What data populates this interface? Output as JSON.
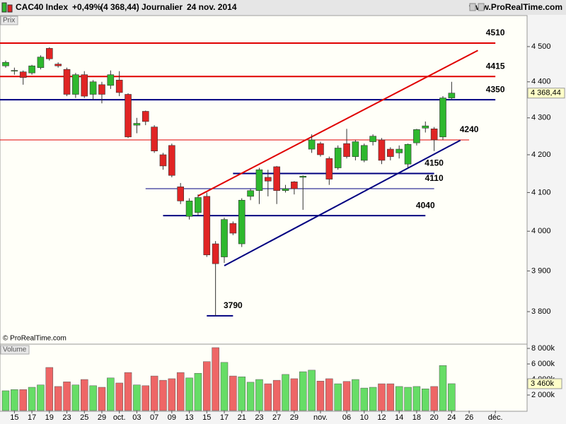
{
  "header": {
    "title": "CAC40 Index",
    "change": "+0,49%",
    "last": "(4 368,44)",
    "period": "Journalier",
    "date": "24 nov. 2014",
    "site": "www.ProRealTime.com"
  },
  "chart_data": [
    {
      "type": "candlestick",
      "panel_label": "Prix",
      "copyright": "© ProRealTime.com",
      "log_scale": true,
      "grid": false,
      "up_color": "#2eb82e",
      "down_color": "#e02424",
      "categories": [
        null,
        "15",
        null,
        "17",
        null,
        "19",
        null,
        "23",
        null,
        "25",
        null,
        "29",
        null,
        "oct.",
        null,
        "03",
        null,
        "07",
        null,
        "09",
        null,
        "13",
        null,
        "15",
        null,
        "17",
        null,
        "21",
        null,
        "23",
        null,
        "27",
        null,
        "29",
        null,
        null,
        "nov.",
        null,
        null,
        "06",
        null,
        "10",
        null,
        "12",
        null,
        "14",
        null,
        "18",
        null,
        "20",
        null,
        "24",
        null,
        "26",
        null,
        null,
        "déc."
      ],
      "open": [
        4445,
        4430,
        4428,
        4425,
        4440,
        4495,
        4450,
        4435,
        4365,
        4420,
        4365,
        4392,
        4390,
        4405,
        4365,
        4280,
        4318,
        4275,
        4200,
        4225,
        4115,
        4038,
        4048,
        4090,
        3968,
        3935,
        4020,
        3968,
        4090,
        4105,
        4140,
        4168,
        4105,
        4128,
        4140,
        4215,
        4230,
        4190,
        4165,
        4230,
        4195,
        4185,
        4235,
        4240,
        4215,
        4205,
        4175,
        4232,
        4272,
        4270,
        4248,
        4355,
        null,
        null,
        null,
        null,
        null
      ],
      "high": [
        4460,
        4440,
        4432,
        4448,
        4475,
        4498,
        4455,
        4440,
        4425,
        4430,
        4405,
        4400,
        4432,
        4430,
        4368,
        4300,
        4320,
        4280,
        4205,
        4230,
        4125,
        4085,
        4095,
        4100,
        3975,
        4035,
        4025,
        4085,
        4110,
        4165,
        4160,
        4170,
        4120,
        4130,
        4145,
        4255,
        4235,
        4195,
        4225,
        4270,
        4240,
        4230,
        4255,
        4245,
        4220,
        4225,
        4230,
        4270,
        4290,
        4275,
        4360,
        4400,
        null,
        null,
        null,
        null,
        null
      ],
      "low": [
        4440,
        4420,
        4392,
        4420,
        4435,
        4460,
        4440,
        4360,
        4355,
        4355,
        4350,
        4340,
        4380,
        4360,
        4245,
        4258,
        4280,
        4205,
        4160,
        4140,
        4070,
        4030,
        4040,
        3935,
        3790,
        3920,
        3990,
        3960,
        4080,
        4070,
        4090,
        4070,
        4100,
        4095,
        4055,
        4205,
        4195,
        4120,
        4160,
        4190,
        4185,
        4180,
        4225,
        4175,
        4185,
        4190,
        4165,
        4225,
        4260,
        4210,
        4240,
        4350,
        null,
        null,
        null,
        null,
        null
      ],
      "close": [
        4455,
        4432,
        4412,
        4445,
        4470,
        4465,
        4445,
        4365,
        4420,
        4360,
        4400,
        4365,
        4420,
        4370,
        4248,
        4285,
        4290,
        4210,
        4170,
        4145,
        4078,
        4078,
        4087,
        3940,
        3918,
        4030,
        3995,
        4080,
        4105,
        4160,
        4130,
        4105,
        4110,
        4110,
        4143,
        4240,
        4200,
        4135,
        4218,
        4195,
        4235,
        4225,
        4250,
        4185,
        4195,
        4215,
        4228,
        4268,
        4278,
        4240,
        4355,
        4368.44,
        null,
        null,
        null,
        null,
        null
      ],
      "last_close_label": "4 368,44",
      "ylim": [
        3722,
        4590
      ],
      "yticks": [
        {
          "value": 3800,
          "label": "3 800"
        },
        {
          "value": 3900,
          "label": "3 900"
        },
        {
          "value": 4000,
          "label": "4 000"
        },
        {
          "value": 4100,
          "label": "4 100"
        },
        {
          "value": 4200,
          "label": "4 200"
        },
        {
          "value": 4300,
          "label": "4 300"
        },
        {
          "value": 4400,
          "label": "4 400"
        },
        {
          "value": 4500,
          "label": "4 500"
        }
      ],
      "levels": [
        {
          "value": 4510,
          "color": "#e00000",
          "width": 2,
          "from": 0,
          "to": 56
        },
        {
          "value": 4415,
          "color": "#e00000",
          "width": 2,
          "from": 0,
          "to": 56
        },
        {
          "value": 4350,
          "color": "#000080",
          "width": 2,
          "from": 0,
          "to": 56
        },
        {
          "value": 4240,
          "color": "#e00000",
          "width": 1,
          "from": 0,
          "to": 53
        },
        {
          "value": 4150,
          "color": "#000080",
          "width": 2,
          "from": 26,
          "to": 49
        },
        {
          "value": 4110,
          "color": "#000080",
          "width": 1,
          "from": 16,
          "to": 49
        },
        {
          "value": 4040,
          "color": "#000080",
          "width": 2,
          "from": 18,
          "to": 48
        },
        {
          "value": 3790,
          "color": "#000080",
          "width": 2,
          "from": 23,
          "to": 26
        }
      ],
      "trendlines": [
        {
          "color": "#e00000",
          "from": 22,
          "to": 54,
          "start": 4091,
          "end": 4489
        },
        {
          "color": "#000080",
          "from": 25,
          "to": 52,
          "start": 3913,
          "end": 4239
        }
      ]
    },
    {
      "type": "bar",
      "panel_label": "Volume",
      "values": [
        2550,
        2700,
        2700,
        3000,
        3300,
        5550,
        3100,
        3700,
        3300,
        4000,
        3200,
        3000,
        4200,
        3550,
        4900,
        3300,
        3200,
        4450,
        3900,
        4100,
        4900,
        4200,
        4800,
        6300,
        8100,
        6200,
        4450,
        4350,
        3650,
        4000,
        3450,
        3900,
        4650,
        4100,
        5000,
        5200,
        3800,
        4100,
        3450,
        3750,
        4000,
        2900,
        3000,
        3450,
        3450,
        3100,
        3000,
        3100,
        2800,
        3100,
        5800,
        3460,
        null,
        null,
        null,
        null,
        null
      ],
      "value_labels": [
        null,
        null,
        null,
        null,
        null,
        null,
        null,
        null,
        null,
        null,
        null,
        null,
        null,
        null,
        null,
        null,
        null,
        null,
        null,
        null,
        null,
        null,
        null,
        null,
        null,
        null,
        null,
        null,
        null,
        null,
        null,
        null,
        null,
        null,
        null,
        null,
        null,
        null,
        null,
        null,
        null,
        null,
        null,
        null,
        null,
        null,
        null,
        null,
        null,
        null,
        null,
        "3 460k",
        null,
        null,
        null,
        null,
        null
      ],
      "ylim": [
        0,
        8550
      ],
      "yticks": [
        {
          "value": 2000,
          "label": "2 000k"
        },
        {
          "value": 4000,
          "label": "4 000k"
        },
        {
          "value": 6000,
          "label": "6 000k"
        },
        {
          "value": 8000,
          "label": "8 000k"
        }
      ]
    }
  ]
}
